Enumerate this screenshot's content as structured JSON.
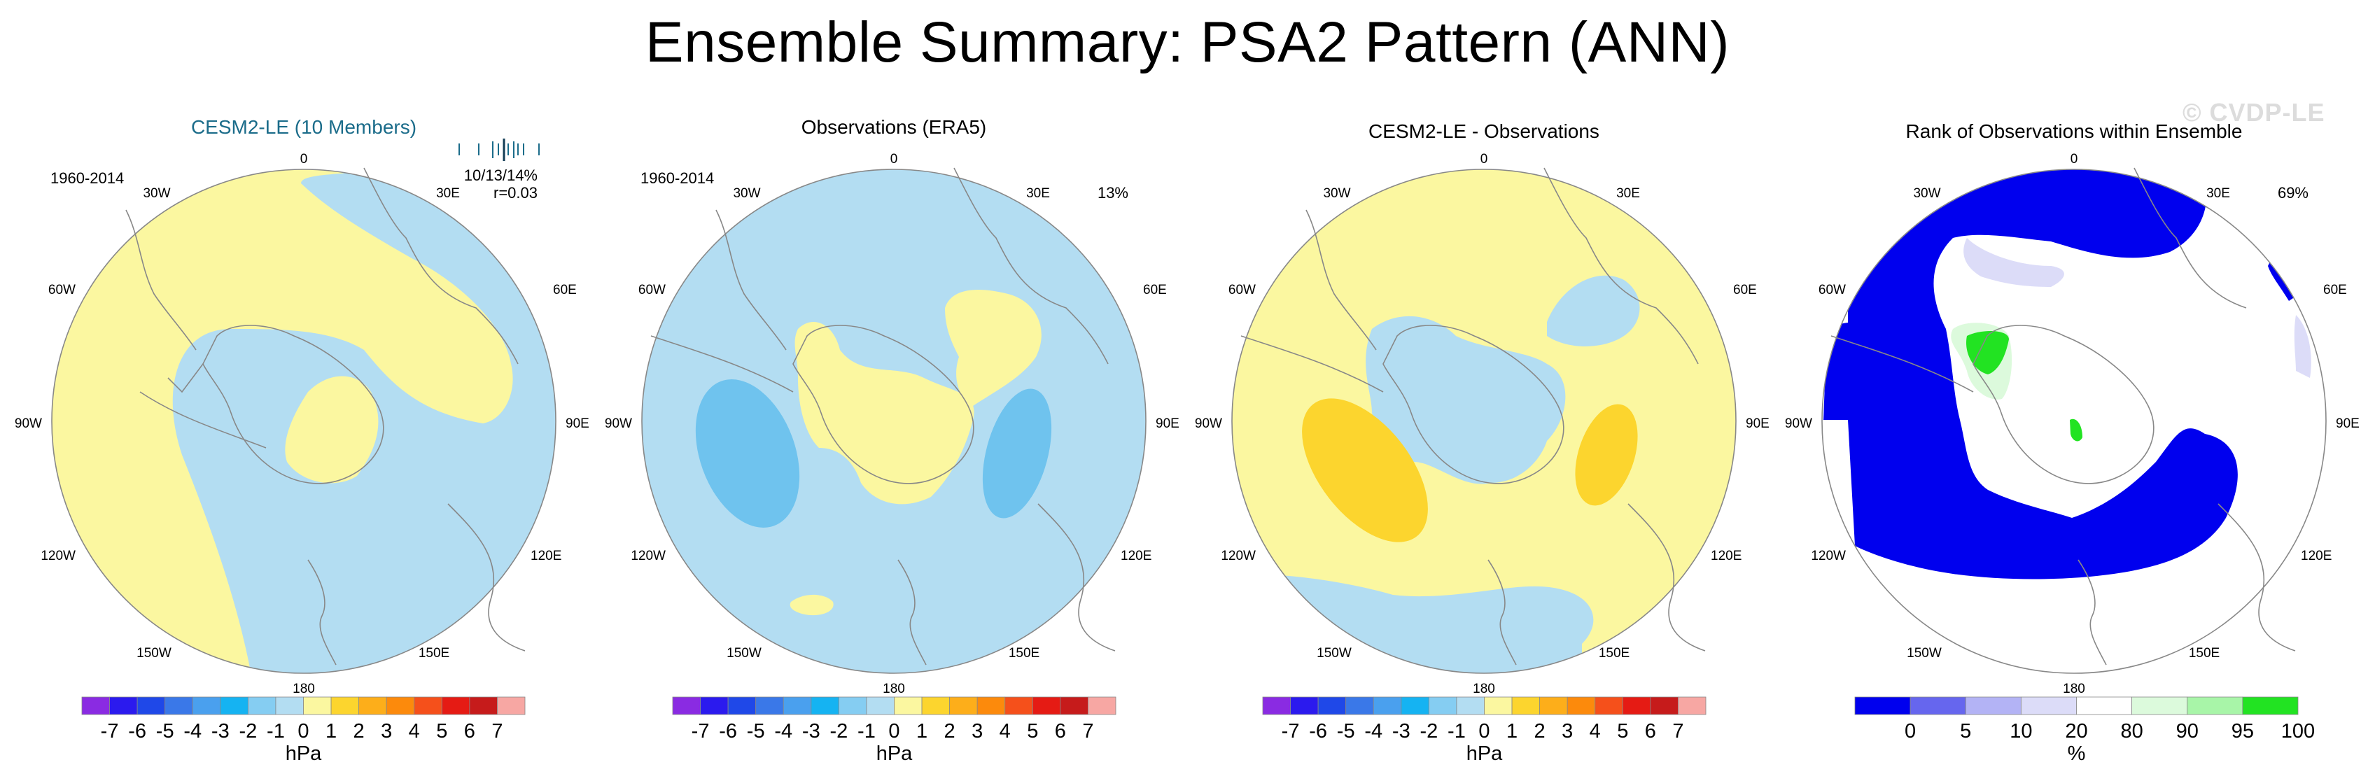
{
  "figure": {
    "title": "Ensemble Summary: PSA2 Pattern (ANN)",
    "watermark": "© CVDP-LE"
  },
  "colors": {
    "ocean_blue": "#b3ddf2",
    "neg_blue": "#6fc3ee",
    "pos_yellow": "#fbf7a0",
    "pos_gold": "#fcd52e",
    "rank_blue": "#0000ee",
    "rank_lavender": "#dcdcf8",
    "rank_green": "#22e322",
    "rank_lightgreen": "#dcfadc",
    "coast": "#888888"
  },
  "colorbar_hpa": {
    "colors": [
      "#8a2be2",
      "#2b1aee",
      "#1f48e8",
      "#3a78e8",
      "#4aa0ee",
      "#15b3f2",
      "#85cdf2",
      "#b3ddf2",
      "#fbf7a0",
      "#fcd52e",
      "#fdae1a",
      "#fc8a0c",
      "#f5501b",
      "#e51b14",
      "#c61b1b",
      "#f7a7a3"
    ],
    "labels": [
      "-7",
      "-6",
      "-5",
      "-4",
      "-3",
      "-2",
      "-1",
      "0",
      "1",
      "2",
      "3",
      "4",
      "5",
      "6",
      "7"
    ],
    "units": "hPa"
  },
  "colorbar_rank": {
    "colors": [
      "#0000ee",
      "#6666ee",
      "#b3b3f5",
      "#dcdcf8",
      "#ffffff",
      "#dcfadc",
      "#a8f5a8",
      "#22e322"
    ],
    "labels": [
      "0",
      "5",
      "10",
      "20",
      "80",
      "90",
      "95",
      "100"
    ],
    "units": "%"
  },
  "lon_labels": [
    "0",
    "30E",
    "60E",
    "90E",
    "120E",
    "150E",
    "180",
    "150W",
    "120W",
    "90W",
    "60W",
    "30W"
  ],
  "panels": [
    {
      "title": "CESM2-LE (10 Members)",
      "title_color": "#1b6c8a",
      "period": "1960-2014",
      "pct_text": "10/13/14%",
      "r_text": "r=0.03",
      "has_ticks": true
    },
    {
      "title": "Observations (ERA5)",
      "title_color": "#000000",
      "period": "1960-2014",
      "pct_text": "13%"
    },
    {
      "title": "CESM2-LE - Observations",
      "title_color": "#000000"
    },
    {
      "title": "Rank of Observations within Ensemble",
      "title_color": "#000000",
      "pct_text": "69%"
    }
  ],
  "chart_data": [
    {
      "type": "heatmap",
      "title": "CESM2-LE (10 Members)",
      "projection": "south-polar stereographic",
      "period": "1960-2014",
      "variable": "sea level pressure pattern (hPa)",
      "range_hpa": [
        -1,
        1
      ],
      "dominant_class": "-1 to 0 (light blue)",
      "secondary_class": "0 to 1 (light yellow) arc 60W-150W and over East Antarctica",
      "annotation": "10/13/14%",
      "r": 0.03,
      "member_tick_marks": 10
    },
    {
      "type": "heatmap",
      "title": "Observations (ERA5)",
      "projection": "south-polar stereographic",
      "period": "1960-2014",
      "variable": "sea level pressure pattern (hPa)",
      "range_hpa": [
        -2,
        1
      ],
      "negative_centers": [
        "~100W (-1 to -2)",
        "~110E (-1 to -2)"
      ],
      "positive_regions": [
        "Antarctic continent",
        "South Atlantic ~30E",
        "small patch ~150W"
      ],
      "annotation": "13%"
    },
    {
      "type": "heatmap",
      "title": "CESM2-LE - Observations",
      "projection": "south-polar stereographic",
      "variable": "difference (hPa)",
      "range_hpa": [
        -1,
        2
      ],
      "positive_centers": [
        "~100W (1 to 2)",
        "~110E (1 to 2)"
      ],
      "negative_regions": [
        "Antarctic continent",
        "South Atlantic ~30E",
        "Pacific ~165W-165E"
      ]
    },
    {
      "type": "heatmap",
      "title": "Rank of Observations within Ensemble",
      "projection": "south-polar stereographic",
      "variable": "rank percentile (%)",
      "classes": [
        "0-5",
        "5-10",
        "10-20",
        "20-80",
        "80-90",
        "90-95",
        "95-100"
      ],
      "dominant_low_rank_regions": [
        "South Atlantic/Indian arc",
        "Pacific sector 100W",
        "Indian sector 110E"
      ],
      "high_rank_regions": [
        "Weddell Sea",
        "small East Antarctic patch"
      ],
      "annotation": "69%"
    }
  ]
}
